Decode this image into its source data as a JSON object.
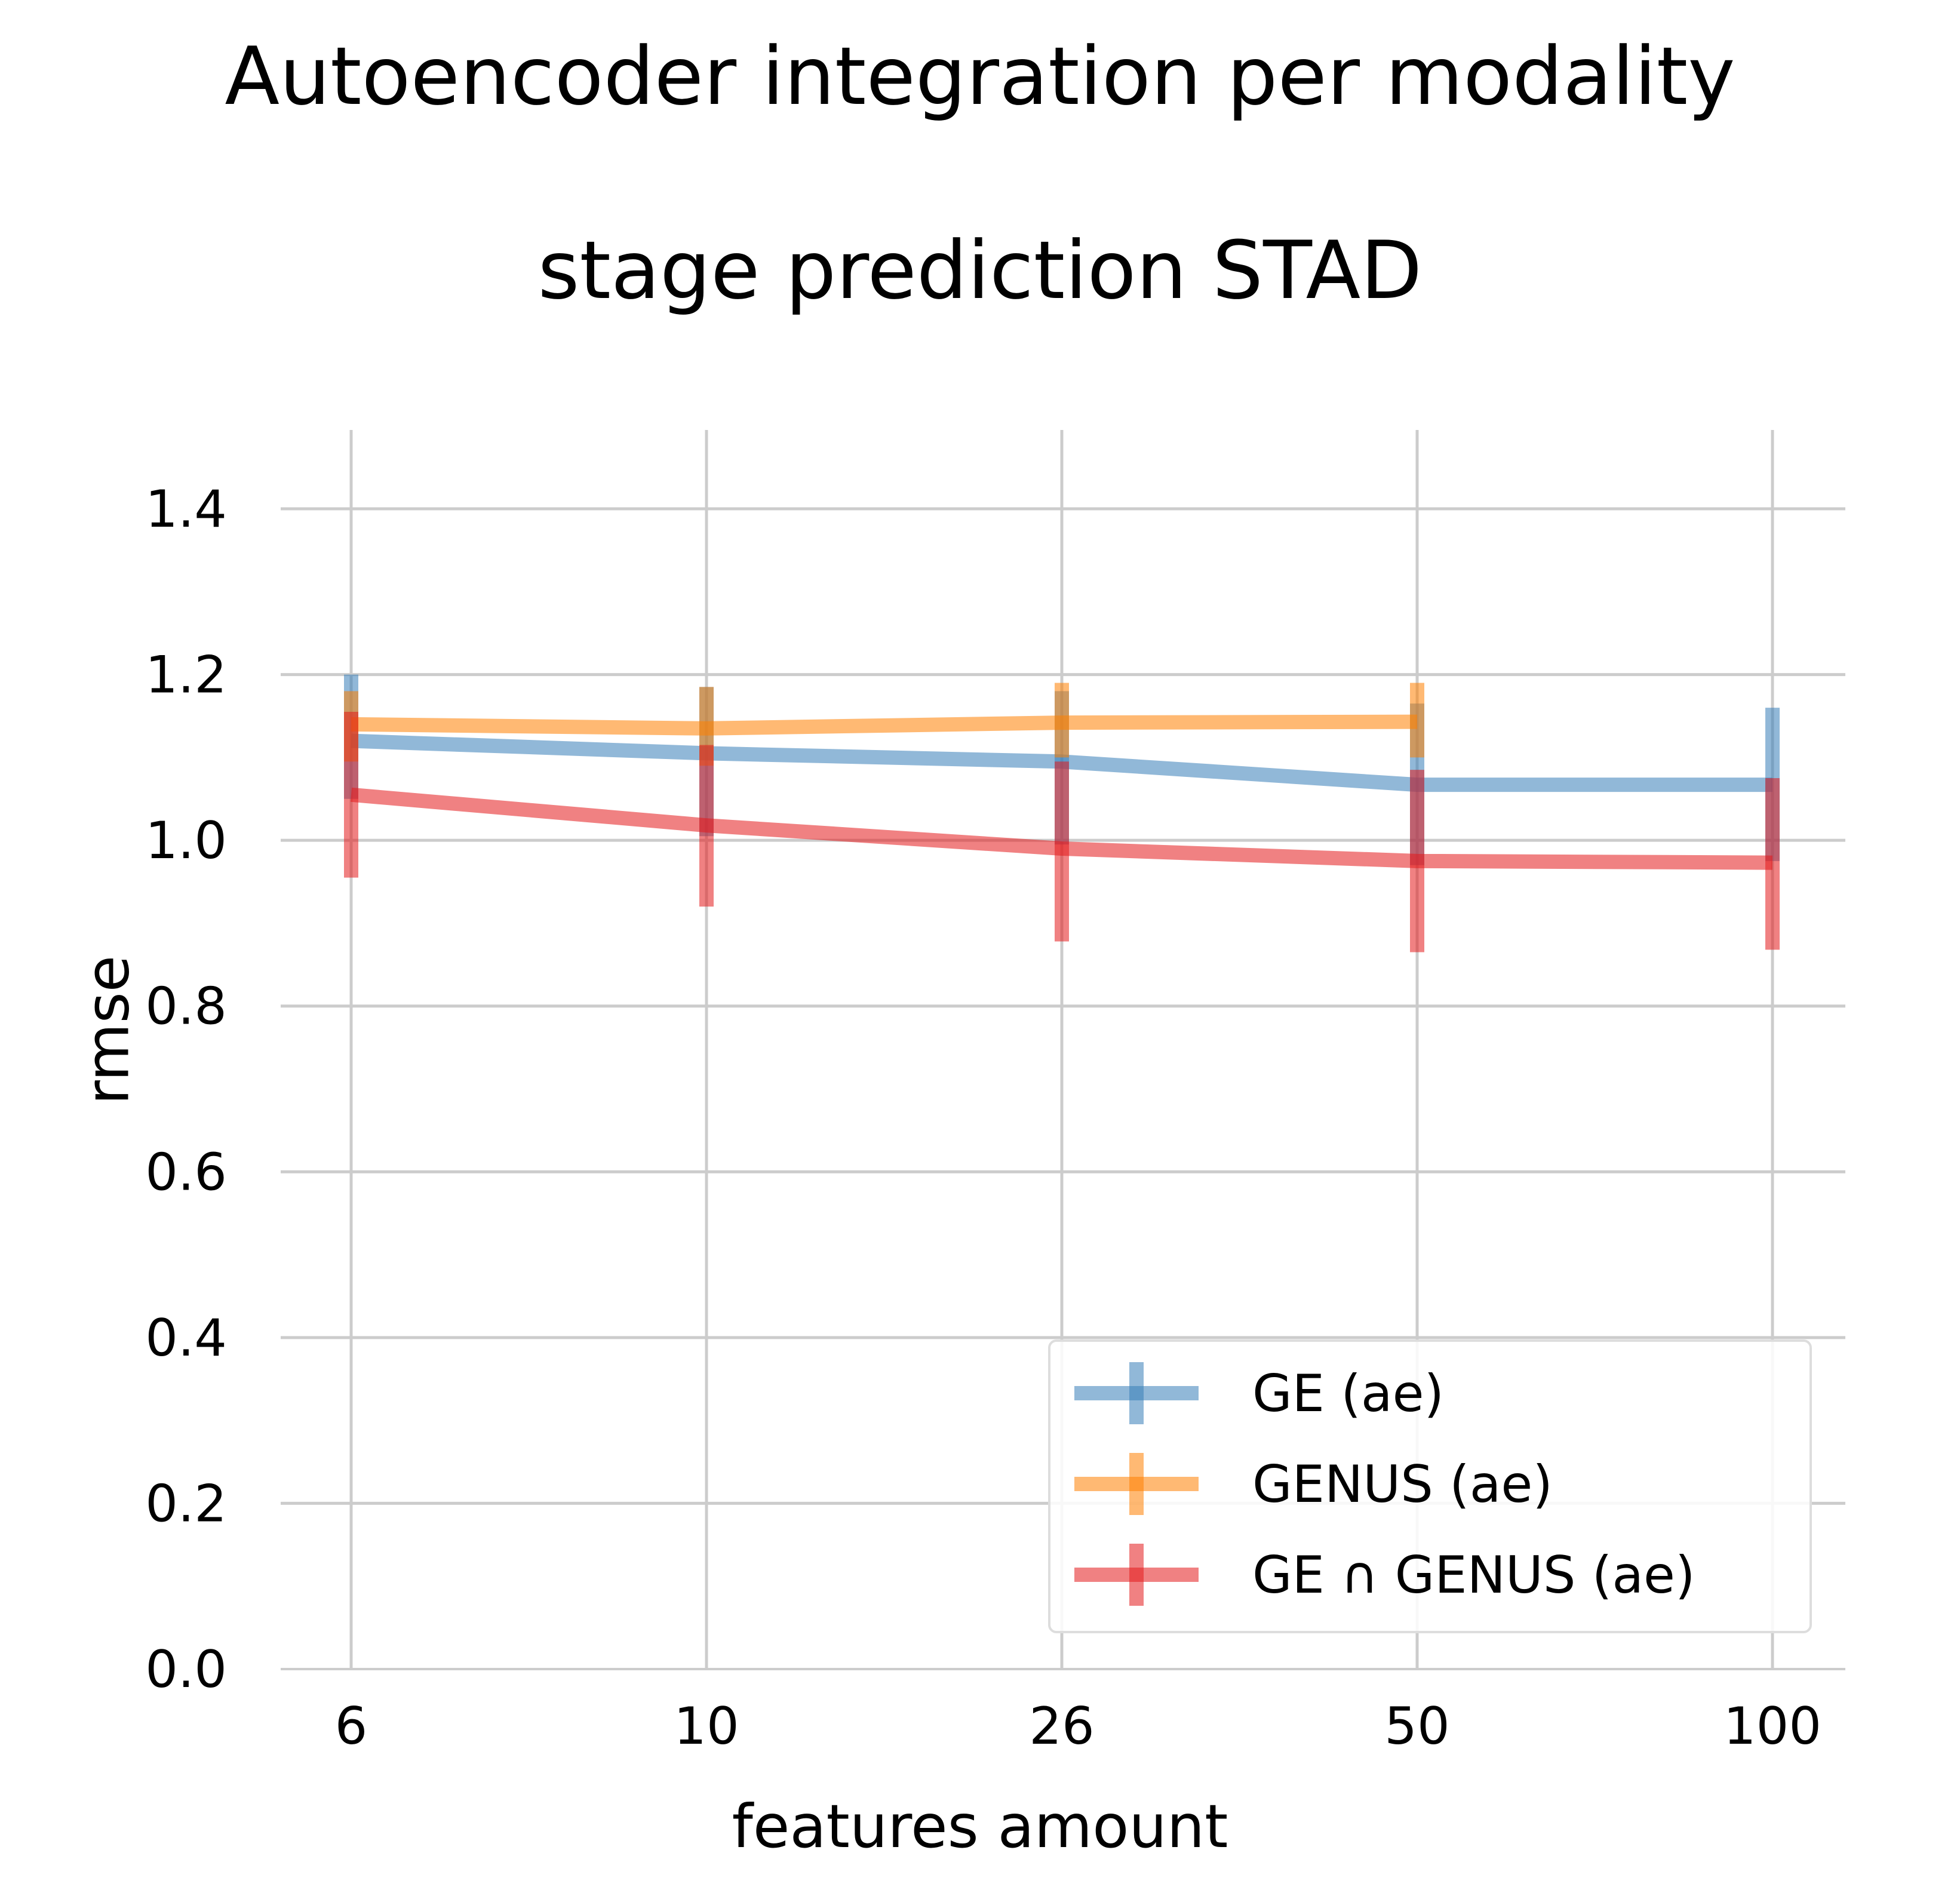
{
  "chart_data": {
    "type": "line",
    "title": "Autoencoder integration per modality\n\nstage prediction STAD",
    "title_lines": [
      "Autoencoder integration per modality",
      "stage prediction STAD"
    ],
    "xlabel": "features amount",
    "ylabel": "rmse",
    "categories": [
      "6",
      "10",
      "26",
      "50",
      "100"
    ],
    "ylim": [
      0.0,
      1.5
    ],
    "yticks": [
      "0.0",
      "0.2",
      "0.4",
      "0.6",
      "0.8",
      "1.0",
      "1.2",
      "1.4"
    ],
    "grid": true,
    "legend_position": "lower-right",
    "series": [
      {
        "name": "GE (ae)",
        "color": "#377eb8",
        "values": [
          1.12,
          1.105,
          1.095,
          1.067,
          1.067
        ],
        "err_low": [
          1.05,
          1.005,
          0.995,
          0.97,
          0.975
        ],
        "err_high": [
          1.2,
          1.185,
          1.18,
          1.165,
          1.16
        ]
      },
      {
        "name": "GENUS (ae)",
        "color": "#ff7f00",
        "values": [
          1.14,
          1.135,
          1.142,
          1.143,
          null
        ],
        "err_low": [
          1.095,
          1.09,
          1.1,
          1.1,
          null
        ],
        "err_high": [
          1.18,
          1.185,
          1.19,
          1.19,
          null
        ]
      },
      {
        "name": "GE ∩ GENUS (ae)",
        "color": "#e41a1c",
        "values": [
          1.055,
          1.018,
          0.99,
          0.975,
          0.973
        ],
        "err_low": [
          0.955,
          0.92,
          0.878,
          0.865,
          0.868
        ],
        "err_high": [
          1.155,
          1.115,
          1.095,
          1.085,
          1.075
        ]
      }
    ]
  }
}
